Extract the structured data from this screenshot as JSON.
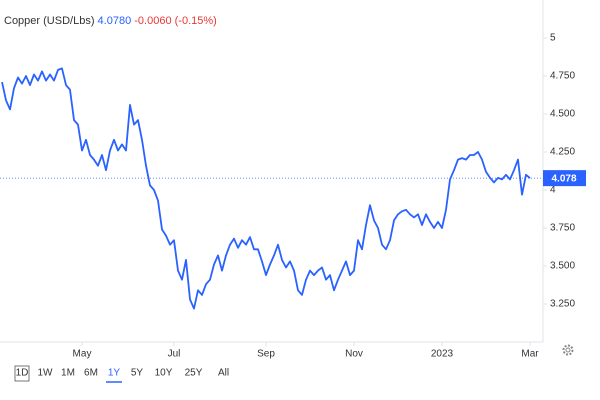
{
  "header": {
    "symbol": "Copper (USD/Lbs)",
    "price": "4.0780",
    "change": "-0.0060",
    "change_pct": "(-0.15%)"
  },
  "chart_data": {
    "type": "line",
    "series": [
      {
        "color": "#2962ff",
        "values": [
          4.71,
          4.59,
          4.53,
          4.67,
          4.74,
          4.7,
          4.75,
          4.69,
          4.76,
          4.72,
          4.78,
          4.72,
          4.76,
          4.72,
          4.79,
          4.8,
          4.69,
          4.66,
          4.46,
          4.43,
          4.26,
          4.33,
          4.23,
          4.2,
          4.16,
          4.23,
          4.13,
          4.26,
          4.33,
          4.26,
          4.3,
          4.26,
          4.56,
          4.43,
          4.46,
          4.33,
          4.16,
          4.03,
          4.0,
          3.93,
          3.74,
          3.7,
          3.64,
          3.67,
          3.47,
          3.41,
          3.54,
          3.28,
          3.22,
          3.34,
          3.31,
          3.38,
          3.41,
          3.51,
          3.57,
          3.47,
          3.57,
          3.64,
          3.68,
          3.62,
          3.67,
          3.64,
          3.69,
          3.61,
          3.61,
          3.53,
          3.44,
          3.51,
          3.57,
          3.64,
          3.54,
          3.49,
          3.53,
          3.47,
          3.34,
          3.31,
          3.41,
          3.47,
          3.44,
          3.47,
          3.49,
          3.41,
          3.44,
          3.34,
          3.41,
          3.47,
          3.53,
          3.44,
          3.47,
          3.67,
          3.61,
          3.77,
          3.9,
          3.8,
          3.75,
          3.64,
          3.61,
          3.67,
          3.8,
          3.84,
          3.86,
          3.87,
          3.84,
          3.82,
          3.84,
          3.77,
          3.84,
          3.79,
          3.75,
          3.79,
          3.75,
          3.87,
          4.07,
          4.13,
          4.2,
          4.21,
          4.2,
          4.23,
          4.23,
          4.25,
          4.2,
          4.12,
          4.08,
          4.05,
          4.08,
          4.07,
          4.1,
          4.07,
          4.13,
          4.2,
          3.97,
          4.1,
          4.078
        ]
      }
    ],
    "xlim": [
      0,
      132
    ],
    "xticks": [
      {
        "value": 20,
        "label": "May"
      },
      {
        "value": 43,
        "label": "Jul"
      },
      {
        "value": 66,
        "label": "Sep"
      },
      {
        "value": 88,
        "label": "Nov"
      },
      {
        "value": 110,
        "label": "2023"
      },
      {
        "value": 132,
        "label": "Mar"
      }
    ],
    "ylim": [
      3.0,
      5.25
    ],
    "yticks": [
      5,
      {
        "value": 4.75,
        "label": "4.750"
      },
      {
        "value": 4.5,
        "label": "4.500"
      },
      {
        "value": 4.25,
        "label": "4.250"
      },
      4,
      {
        "value": 3.75,
        "label": "3.750"
      },
      {
        "value": 3.5,
        "label": "3.500"
      },
      {
        "value": 3.25,
        "label": "3.250"
      }
    ]
  },
  "ranges": [
    "1D",
    "1W",
    "1M",
    "6M",
    "1Y",
    "5Y",
    "10Y",
    "25Y",
    "All"
  ],
  "selected_range": "1Y"
}
